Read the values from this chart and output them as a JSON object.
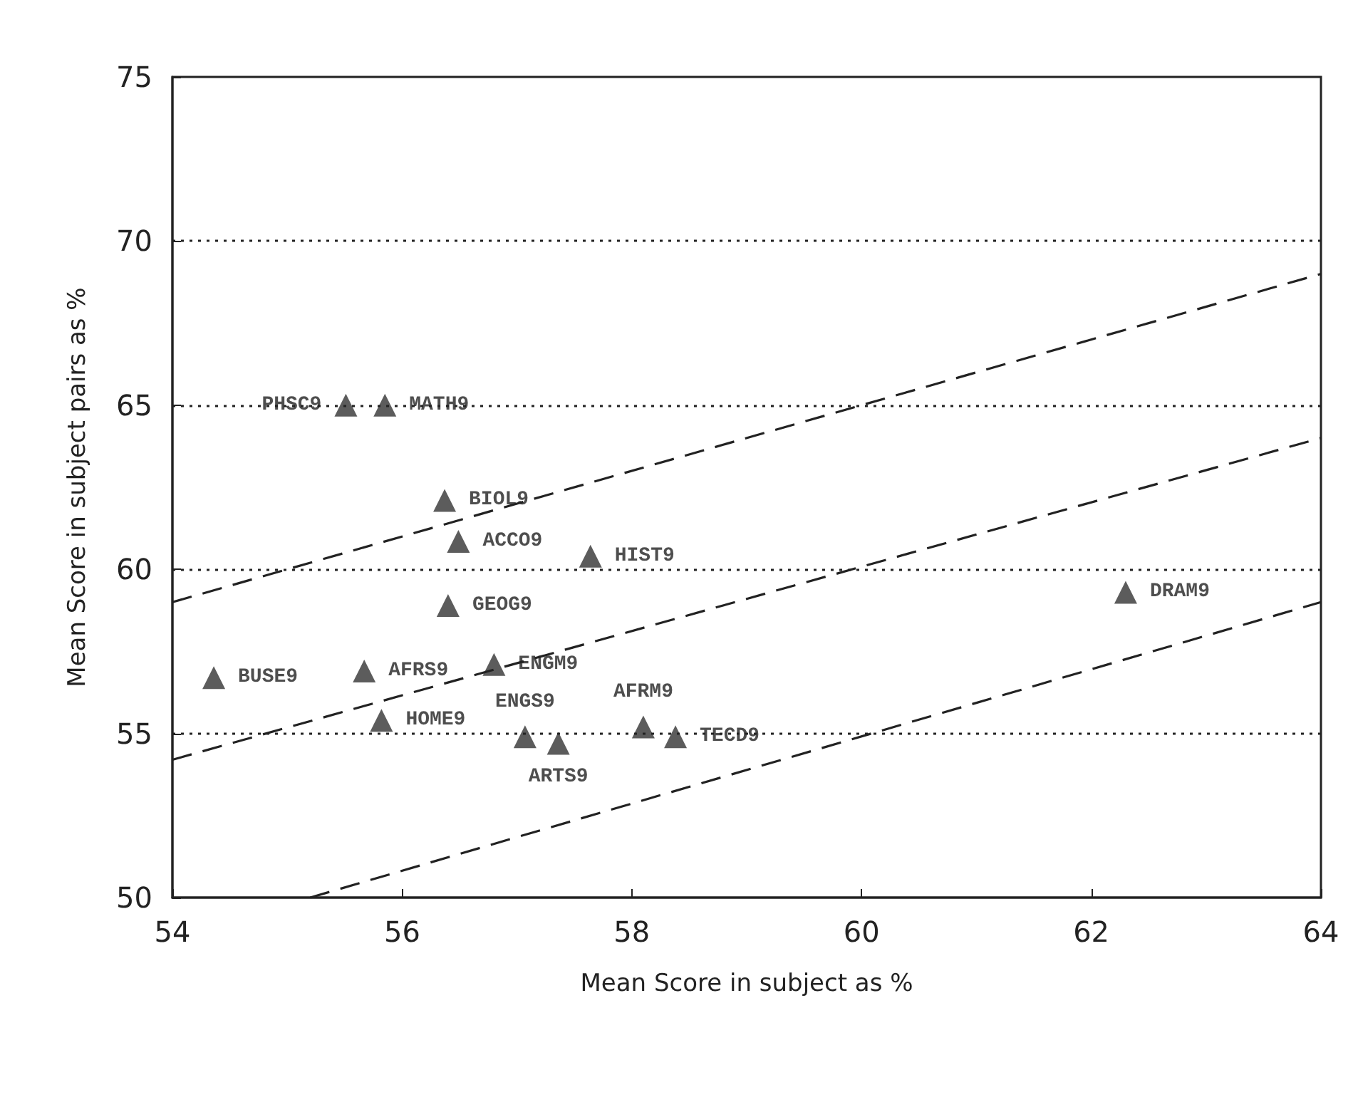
{
  "chart_data": {
    "type": "scatter",
    "xlabel": "Mean Score in subject as %",
    "ylabel": "Mean Score in subject pairs as %",
    "xlim": [
      54,
      64
    ],
    "ylim": [
      50,
      75
    ],
    "xticks": [
      54,
      56,
      58,
      60,
      62,
      64
    ],
    "yticks": [
      50,
      55,
      60,
      65,
      70,
      75
    ],
    "grid": false,
    "series": [
      {
        "marker": "triangle",
        "color": "#333333",
        "value_labels": [
          "PHSC9",
          "MATH9",
          "BIOL9",
          "ACCO9",
          "HIST9",
          "GEOG9",
          "DRAM9",
          "BUSE9",
          "AFRS9",
          "ENGM9",
          "HOME9",
          "ENGS9",
          "ARTS9",
          "AFRM9",
          "TECD9"
        ],
        "x": [
          55.51,
          55.85,
          56.37,
          56.49,
          57.64,
          56.4,
          62.3,
          54.36,
          55.67,
          56.8,
          55.82,
          57.07,
          57.36,
          58.1,
          58.38
        ],
        "values": [
          65.0,
          65.0,
          62.1,
          60.85,
          60.4,
          58.9,
          59.3,
          56.7,
          56.9,
          57.1,
          55.4,
          54.9,
          54.7,
          55.2,
          54.9
        ]
      },
      {
        "type": "line",
        "marker": "none",
        "line_style": "dashed",
        "color": "#222222",
        "x": [
          54,
          64
        ],
        "values": [
          59,
          69
        ]
      },
      {
        "type": "line",
        "marker": "none",
        "line_style": "dashed",
        "color": "#222222",
        "x": [
          54,
          64
        ],
        "values": [
          54.2,
          64
        ]
      },
      {
        "type": "line",
        "marker": "none",
        "line_style": "dashed",
        "color": "#222222",
        "x": [
          55.2,
          64
        ],
        "values": [
          50,
          59
        ]
      }
    ],
    "ref_lines": [
      {
        "axis": "y",
        "value": 70,
        "line_style": "dotted",
        "color": "#222222"
      },
      {
        "axis": "y",
        "value": 65,
        "line_style": "dotted",
        "color": "#222222"
      },
      {
        "axis": "y",
        "value": 60,
        "line_style": "dotted",
        "color": "#222222"
      },
      {
        "axis": "y",
        "value": 55,
        "line_style": "dotted",
        "color": "#222222"
      }
    ]
  }
}
